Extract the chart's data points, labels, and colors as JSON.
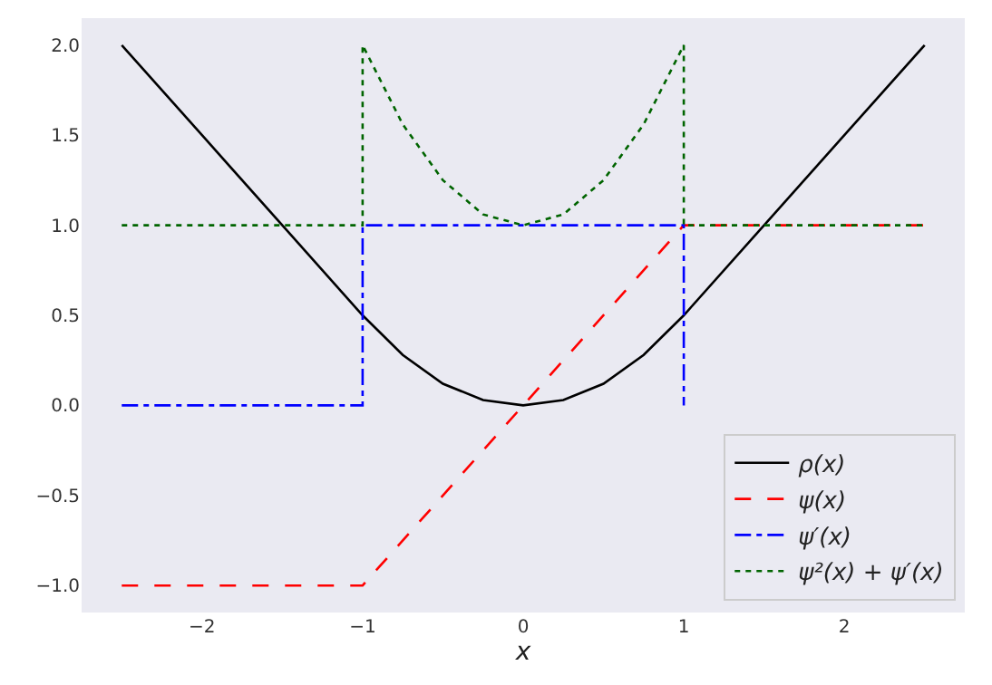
{
  "chart_data": {
    "type": "line",
    "xlabel": "x",
    "series": [
      {
        "name": "ρ(x)",
        "color": "#000000",
        "line_style": "solid",
        "x": [
          -2.5,
          -2,
          -1.5,
          -1,
          -0.75,
          -0.5,
          -0.25,
          0,
          0.25,
          0.5,
          0.75,
          1,
          1.5,
          2,
          2.5
        ],
        "values": [
          2,
          1.5,
          1,
          0.5,
          0.28,
          0.12,
          0.03,
          0,
          0.03,
          0.12,
          0.28,
          0.5,
          1,
          1.5,
          2
        ]
      },
      {
        "name": "ψ(x)",
        "color": "#ff0000",
        "line_style": "dashed",
        "x": [
          -2.5,
          -1,
          1,
          2.5
        ],
        "values": [
          -1,
          -1,
          1,
          1
        ]
      },
      {
        "name": "ψ′(x)",
        "color": "#0000ff",
        "line_style": "dashdot",
        "x": [
          -2.5,
          -1,
          -1,
          1,
          1
        ],
        "values": [
          0,
          0,
          1,
          1,
          0
        ]
      },
      {
        "name": "ψ²(x) + ψ′(x)",
        "color": "#006400",
        "line_style": "dotted",
        "x": [
          -2.5,
          -1,
          -1,
          -0.75,
          -0.5,
          -0.25,
          0,
          0.25,
          0.5,
          0.75,
          1,
          1,
          2.5
        ],
        "values": [
          1,
          1,
          2,
          1.56,
          1.25,
          1.06,
          1,
          1.06,
          1.25,
          1.56,
          2,
          1,
          1
        ]
      }
    ],
    "xlim": [
      -2.75,
      2.75
    ],
    "ylim": [
      -1.15,
      2.15
    ],
    "xticks": [
      {
        "value": -2,
        "label": "−2"
      },
      {
        "value": -1,
        "label": "−1"
      },
      0,
      1,
      2
    ],
    "yticks": [
      {
        "value": -1,
        "label": "−1.0"
      },
      {
        "value": -0.5,
        "label": "−0.5"
      },
      {
        "value": 0,
        "label": "0.0"
      },
      {
        "value": 0.5,
        "label": "0.5"
      },
      {
        "value": 1,
        "label": "1.0"
      },
      {
        "value": 1.5,
        "label": "1.5"
      },
      {
        "value": 2,
        "label": "2.0"
      }
    ],
    "grid": false,
    "legend": "bottom right"
  }
}
